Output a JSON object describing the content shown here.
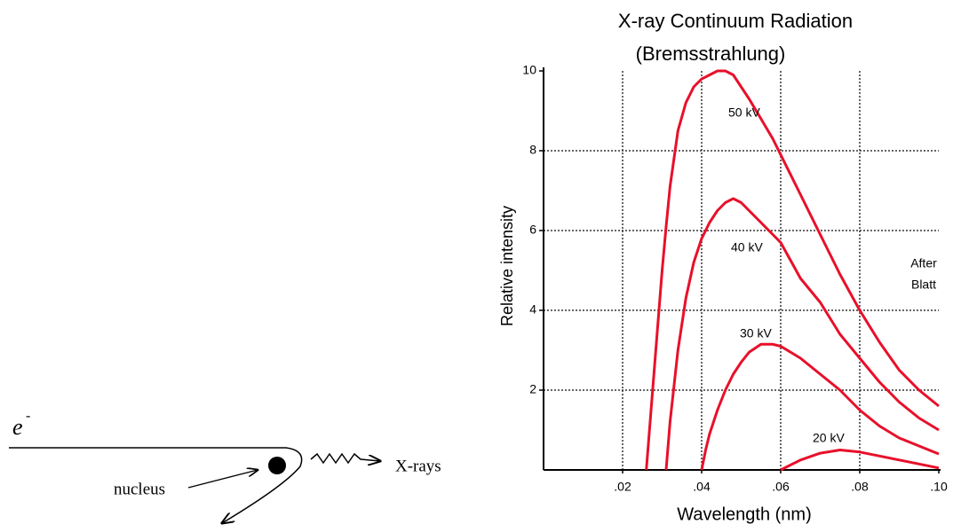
{
  "diagram": {
    "electron_symbol": "e",
    "electron_charge": "-",
    "nucleus_label": "nucleus",
    "emission_label": "X-rays"
  },
  "chart_data": {
    "type": "line",
    "title": "X-ray Continuum Radiation",
    "subtitle": "(Bremsstrahlung)",
    "x_label": "Wavelength (nm)",
    "y_label": "Relative intensity",
    "x": [
      0.026,
      0.028,
      0.03,
      0.031,
      0.032,
      0.034,
      0.036,
      0.038,
      0.04,
      0.041,
      0.042,
      0.044,
      0.046,
      0.048,
      0.05,
      0.052,
      0.055,
      0.058,
      0.06,
      0.065,
      0.07,
      0.075,
      0.08,
      0.085,
      0.09,
      0.095,
      0.1
    ],
    "series": [
      {
        "name": "50 kV",
        "color": "#e8102a",
        "values": [
          0,
          2.5,
          5,
          6.1,
          7.1,
          8.5,
          9.2,
          9.6,
          9.8,
          9.85,
          9.9,
          10,
          10,
          9.9,
          9.6,
          9.3,
          8.8,
          8.3,
          7.9,
          6.9,
          5.9,
          4.9,
          4.0,
          3.2,
          2.5,
          2.0,
          1.6
        ]
      },
      {
        "name": "40 kV",
        "color": "#e8102a",
        "values": [
          null,
          null,
          null,
          0,
          1.2,
          3.0,
          4.3,
          5.2,
          5.8,
          6.0,
          6.2,
          6.5,
          6.7,
          6.8,
          6.7,
          6.5,
          6.2,
          5.9,
          5.7,
          4.8,
          4.2,
          3.4,
          2.8,
          2.2,
          1.7,
          1.3,
          1.0
        ]
      },
      {
        "name": "30 kV",
        "color": "#e8102a",
        "values": [
          null,
          null,
          null,
          null,
          null,
          null,
          null,
          null,
          0,
          0.5,
          0.9,
          1.5,
          2.0,
          2.4,
          2.7,
          2.95,
          3.15,
          3.15,
          3.1,
          2.8,
          2.4,
          2.0,
          1.5,
          1.1,
          0.8,
          0.6,
          0.4
        ]
      },
      {
        "name": "20 kV",
        "color": "#e8102a",
        "values": [
          null,
          null,
          null,
          null,
          null,
          null,
          null,
          null,
          null,
          null,
          null,
          null,
          null,
          null,
          null,
          null,
          null,
          null,
          0,
          0.25,
          0.42,
          0.5,
          0.45,
          0.35,
          0.25,
          0.15,
          0.05
        ]
      }
    ],
    "annotation": [
      "After",
      "Blatt"
    ],
    "xlim": [
      0,
      0.1
    ],
    "ylim": [
      0,
      10
    ],
    "xticks": [
      {
        "value": 0.02,
        "label": ".02"
      },
      {
        "value": 0.04,
        "label": ".04"
      },
      {
        "value": 0.06,
        "label": ".06"
      },
      {
        "value": 0.08,
        "label": ".08"
      },
      {
        "value": 0.1,
        "label": ".10"
      }
    ],
    "yticks": [
      2,
      4,
      6,
      8,
      10
    ],
    "grid": true
  }
}
